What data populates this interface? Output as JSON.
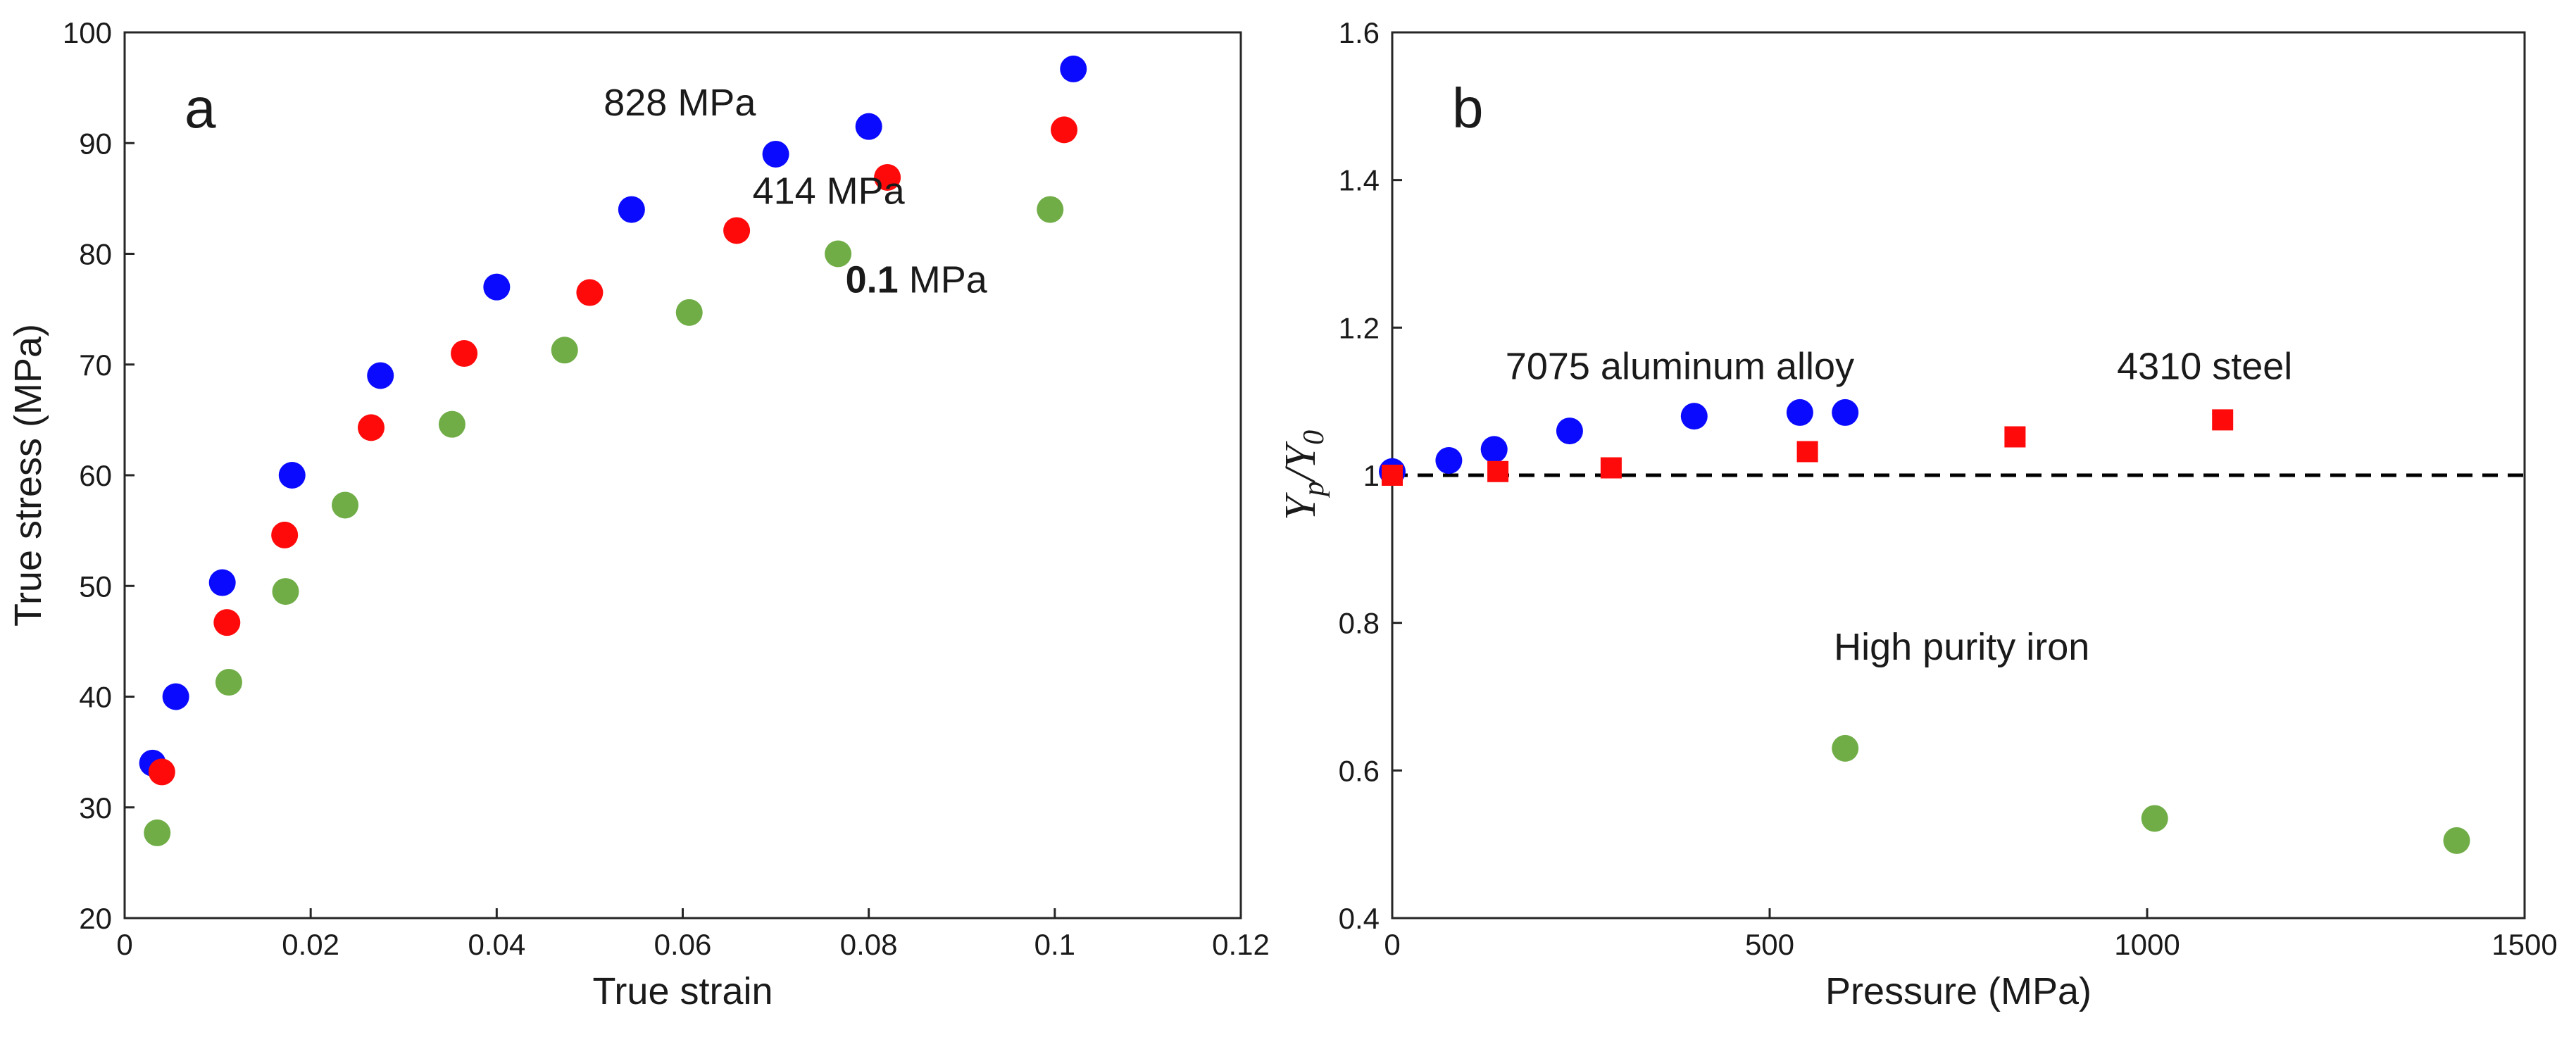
{
  "colors": {
    "blue": "#0a0aff",
    "red": "#ff0a0a",
    "green": "#70ad47",
    "axis": "#262626",
    "dashed": "#000000"
  },
  "chart_data": [
    {
      "type": "scatter",
      "panel_label": "a",
      "xlabel": "True strain",
      "ylabel": "True stress (MPa)",
      "xlim": [
        0,
        0.12
      ],
      "ylim": [
        20,
        100
      ],
      "xticks": [
        "0",
        "0.02",
        "0.04",
        "0.06",
        "0.08",
        "0.1",
        "0.12"
      ],
      "yticks": [
        "20",
        "30",
        "40",
        "50",
        "60",
        "70",
        "80",
        "90",
        "100"
      ],
      "grid": false,
      "annotations": [
        {
          "text": "828 MPa",
          "bold_part": "",
          "rest": "828 MPa",
          "x": 0.0515,
          "y": 92.5
        },
        {
          "text": "414 MPa",
          "bold_part": "",
          "rest": "414 MPa",
          "x": 0.0675,
          "y": 84.5
        },
        {
          "text": "0.1 MPa",
          "bold_part": "0.1",
          "rest": " MPa",
          "x": 0.0775,
          "y": 76.5
        }
      ],
      "series": [
        {
          "color": "blue",
          "x": [
            0.003,
            0.0055,
            0.0105,
            0.018,
            0.0275,
            0.04,
            0.0545,
            0.07,
            0.08,
            0.102
          ],
          "y": [
            34,
            40,
            50.3,
            60,
            69,
            77,
            84,
            89,
            91.5,
            96.7
          ]
        },
        {
          "color": "red",
          "x": [
            0.004,
            0.011,
            0.0172,
            0.0265,
            0.0365,
            0.05,
            0.0658,
            0.082,
            0.101
          ],
          "y": [
            33.2,
            46.7,
            54.6,
            64.3,
            71,
            76.5,
            82.1,
            86.9,
            91.2
          ]
        },
        {
          "color": "green",
          "x": [
            0.0035,
            0.0112,
            0.0173,
            0.0237,
            0.0352,
            0.0473,
            0.0607,
            0.0767,
            0.0995
          ],
          "y": [
            27.7,
            41.3,
            49.5,
            57.3,
            64.6,
            71.3,
            74.7,
            80,
            84
          ]
        }
      ]
    },
    {
      "type": "scatter",
      "panel_label": "b",
      "xlabel": "Pressure (MPa)",
      "ylabel_main": "Y",
      "ylabel_sub1": "p",
      "ylabel_sep": "/",
      "ylabel_sub2": "0",
      "xlim": [
        0,
        1500
      ],
      "ylim": [
        0.4,
        1.6
      ],
      "xticks": [
        "0",
        "500",
        "1000",
        "1500"
      ],
      "yticks": [
        "0.4",
        "0.6",
        "0.8",
        "1",
        "1.2",
        "1.4",
        "1.6"
      ],
      "grid": false,
      "reference_line": {
        "y": 1,
        "style": "dashed"
      },
      "annotations": [
        {
          "text": "7075 aluminum alloy",
          "x": 150,
          "y": 1.13
        },
        {
          "text": "4310 steel",
          "x": 960,
          "y": 1.13
        },
        {
          "text": "High purity iron",
          "x": 585,
          "y": 0.75
        }
      ],
      "series": [
        {
          "marker": "circle",
          "color": "blue",
          "x": [
            0,
            75,
            135,
            235,
            400,
            540,
            600
          ],
          "y": [
            1.005,
            1.02,
            1.035,
            1.06,
            1.08,
            1.085,
            1.085
          ]
        },
        {
          "marker": "square",
          "color": "red",
          "x": [
            0,
            140,
            290,
            550,
            825,
            1100
          ],
          "y": [
            1.0,
            1.005,
            1.01,
            1.032,
            1.052,
            1.075
          ]
        },
        {
          "marker": "circle",
          "color": "green",
          "x": [
            600,
            1010,
            1410
          ],
          "y": [
            0.63,
            0.535,
            0.505
          ]
        }
      ]
    }
  ]
}
